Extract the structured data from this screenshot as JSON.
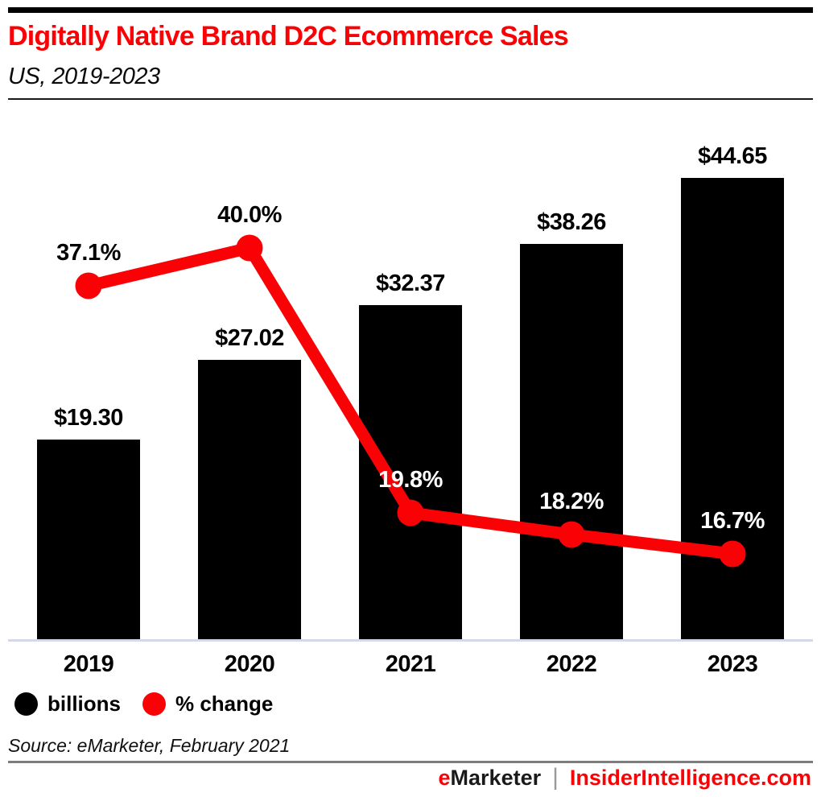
{
  "chart_data": {
    "type": "bar+line",
    "title": "Digitally Native Brand D2C Ecommerce Sales",
    "subtitle": "US, 2019-2023",
    "categories": [
      "2019",
      "2020",
      "2021",
      "2022",
      "2023"
    ],
    "series": [
      {
        "name": "billions",
        "type": "bar",
        "color": "#000000",
        "values": [
          19.3,
          27.02,
          32.37,
          38.26,
          44.65
        ],
        "labels": [
          "$19.30",
          "$27.02",
          "$32.37",
          "$38.26",
          "$44.65"
        ]
      },
      {
        "name": "% change",
        "type": "line",
        "color": "#fa0205",
        "values": [
          37.1,
          40.0,
          19.8,
          18.2,
          16.7
        ],
        "labels": [
          "37.1%",
          "40.0%",
          "19.8%",
          "18.2%",
          "16.7%"
        ],
        "label_colors": [
          "#000000",
          "#000000",
          "#ffffff",
          "#ffffff",
          "#ffffff"
        ]
      }
    ],
    "xlabel": "",
    "ylabel": "",
    "axes_visible": false,
    "gridlines": false,
    "legend_position": "bottom-left"
  },
  "legend": {
    "items": [
      {
        "label": "billions",
        "color": "#000000"
      },
      {
        "label": "% change",
        "color": "#fa0205"
      }
    ]
  },
  "source": {
    "text": "Source: eMarketer, February 2021"
  },
  "footer": {
    "brand_accent": "e",
    "brand_rest": "Marketer",
    "separator": "|",
    "site": "InsiderIntelligence.com"
  },
  "colors": {
    "accent_red": "#fa0205",
    "bar_black": "#000000",
    "baseline_line": "#d3d9e8",
    "divider_gray": "#7d7d7d"
  }
}
